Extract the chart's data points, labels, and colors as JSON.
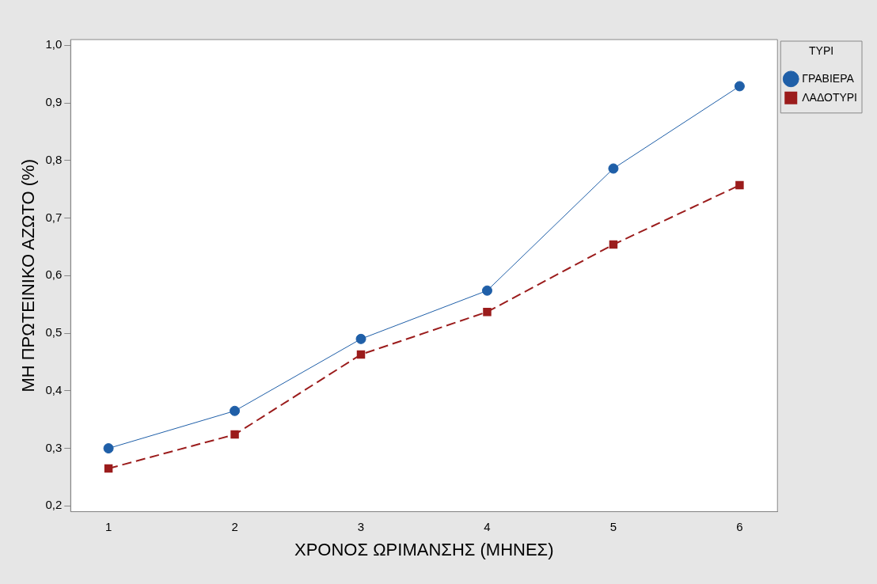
{
  "chart_data": {
    "type": "line",
    "xlabel": "ΧΡΟΝΟΣ ΩΡΙΜΑΝΣΗΣ (ΜΗΝΕΣ)",
    "ylabel": "ΜΗ ΠΡΩΤΕΙΝΙΚΟ ΑΖΩΤΟ (%)",
    "legend_title": "ΤΥΡΙ",
    "x": [
      1,
      2,
      3,
      4,
      5,
      6
    ],
    "series": [
      {
        "name": "ΓΡΑΒΙΕΡΑ",
        "color": "#1f5fa8",
        "marker": "circle",
        "line_style": "solid",
        "values": [
          0.3,
          0.365,
          0.49,
          0.574,
          0.786,
          0.929
        ]
      },
      {
        "name": "ΛΑΔΟΤΥΡΙ",
        "color": "#9b1c1c",
        "marker": "square",
        "line_style": "dashed",
        "values": [
          0.265,
          0.324,
          0.463,
          0.537,
          0.654,
          0.757
        ]
      }
    ],
    "xlim": [
      0.7,
      6.3
    ],
    "xticks": [
      1,
      2,
      3,
      4,
      5,
      6
    ],
    "ylim": [
      0.19,
      1.01
    ],
    "yticks": [
      {
        "value": 0.2,
        "label": "0,2"
      },
      {
        "value": 0.3,
        "label": "0,3"
      },
      {
        "value": 0.4,
        "label": "0,4"
      },
      {
        "value": 0.5,
        "label": "0,5"
      },
      {
        "value": 0.6,
        "label": "0,6"
      },
      {
        "value": 0.7,
        "label": "0,7"
      },
      {
        "value": 0.8,
        "label": "0,8"
      },
      {
        "value": 0.9,
        "label": "0,9"
      },
      {
        "value": 1.0,
        "label": "1,0"
      }
    ],
    "grid": false,
    "legend": "top right"
  }
}
